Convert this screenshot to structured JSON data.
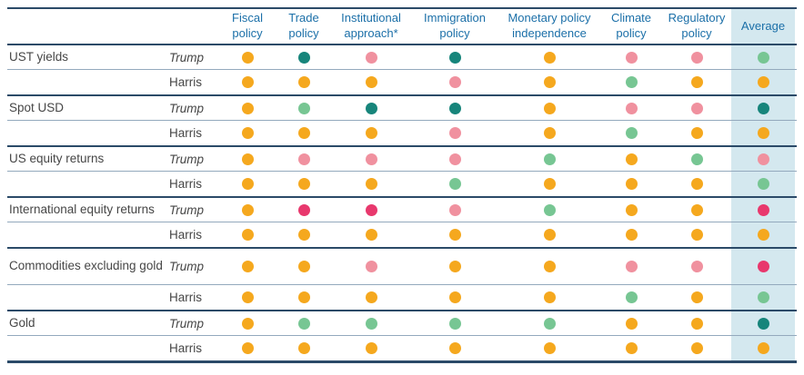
{
  "chart_data": {
    "type": "table",
    "columns": [
      "Fiscal policy",
      "Trade policy",
      "Institutional approach*",
      "Immigration policy",
      "Monetary policy independence",
      "Climate policy",
      "Regulatory policy",
      "Average"
    ],
    "column_note": "Last column (Average) is highlighted with a light blue background",
    "row_groups": [
      {
        "label": "UST yields",
        "rows": [
          {
            "candidate": "Trump",
            "dots": [
              "yellow",
              "teal",
              "pink",
              "teal",
              "yellow",
              "pink",
              "pink",
              "green"
            ]
          },
          {
            "candidate": "Harris",
            "dots": [
              "yellow",
              "yellow",
              "yellow",
              "pink",
              "yellow",
              "green",
              "yellow",
              "yellow"
            ]
          }
        ]
      },
      {
        "label": "Spot USD",
        "rows": [
          {
            "candidate": "Trump",
            "dots": [
              "yellow",
              "green",
              "teal",
              "teal",
              "yellow",
              "pink",
              "pink",
              "teal"
            ]
          },
          {
            "candidate": "Harris",
            "dots": [
              "yellow",
              "yellow",
              "yellow",
              "pink",
              "yellow",
              "green",
              "yellow",
              "yellow"
            ]
          }
        ]
      },
      {
        "label": "US equity returns",
        "rows": [
          {
            "candidate": "Trump",
            "dots": [
              "yellow",
              "pink",
              "pink",
              "pink",
              "green",
              "yellow",
              "green",
              "pink"
            ]
          },
          {
            "candidate": "Harris",
            "dots": [
              "yellow",
              "yellow",
              "yellow",
              "green",
              "yellow",
              "yellow",
              "yellow",
              "green"
            ]
          }
        ]
      },
      {
        "label": "International equity returns",
        "rows": [
          {
            "candidate": "Trump",
            "dots": [
              "yellow",
              "crimson",
              "crimson",
              "pink",
              "green",
              "yellow",
              "yellow",
              "crimson"
            ]
          },
          {
            "candidate": "Harris",
            "dots": [
              "yellow",
              "yellow",
              "yellow",
              "yellow",
              "yellow",
              "yellow",
              "yellow",
              "yellow"
            ]
          }
        ]
      },
      {
        "label": "Commodities excluding gold",
        "rows": [
          {
            "candidate": "Trump",
            "dots": [
              "yellow",
              "yellow",
              "pink",
              "yellow",
              "yellow",
              "pink",
              "pink",
              "crimson"
            ]
          },
          {
            "candidate": "Harris",
            "dots": [
              "yellow",
              "yellow",
              "yellow",
              "yellow",
              "yellow",
              "green",
              "yellow",
              "green"
            ]
          }
        ]
      },
      {
        "label": "Gold",
        "rows": [
          {
            "candidate": "Trump",
            "dots": [
              "yellow",
              "green",
              "green",
              "green",
              "green",
              "yellow",
              "yellow",
              "teal"
            ]
          },
          {
            "candidate": "Harris",
            "dots": [
              "yellow",
              "yellow",
              "yellow",
              "yellow",
              "yellow",
              "yellow",
              "yellow",
              "yellow"
            ]
          }
        ]
      }
    ]
  },
  "dot_colors": {
    "yellow": "#F5A81E",
    "teal": "#17857B",
    "green": "#77C693",
    "pink": "#F0919F",
    "crimson": "#E8386D"
  },
  "colors": {
    "header-blue": "#1B6FA8",
    "line-navy": "#2B4A68",
    "line-thin": "#93A9BD",
    "avg-bg": "#D4E8EF",
    "text": "#464646"
  }
}
